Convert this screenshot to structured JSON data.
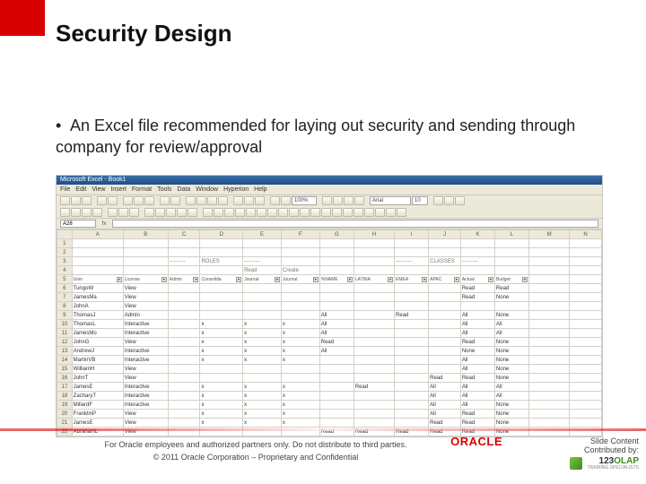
{
  "title": "Security Design",
  "bullet": "An Excel file recommended for laying out security and sending through company for review/approval",
  "excel": {
    "titlebar": "Microsoft Excel - Book1",
    "menus": [
      "File",
      "Edit",
      "View",
      "Insert",
      "Format",
      "Tools",
      "Data",
      "Window",
      "Hyperion",
      "Help"
    ],
    "zoom": "100%",
    "fontName": "Arial",
    "fontSize": "10",
    "nameBox": "A28",
    "colHeaders": [
      "A",
      "B",
      "C",
      "D",
      "E",
      "F",
      "G",
      "H",
      "I",
      "J",
      "K",
      "L",
      "M",
      "N"
    ],
    "dashes": "---------",
    "section1": "ROLES",
    "section2": "CLASSES",
    "subRead": "Read",
    "subCreate": "Create",
    "filterLabels": [
      "User",
      "License",
      "Admin",
      "Consolida",
      "Journal",
      "Journal",
      "%NAME",
      "LATINA",
      "EMEA",
      "APAC",
      "Actual",
      "Budget"
    ],
    "rows": [
      {
        "n": "6",
        "A": "TungoW",
        "B": "View",
        "C": "",
        "D": "",
        "E": "",
        "F": "",
        "G": "",
        "H": "",
        "I": "",
        "J": "",
        "K": "Read",
        "L": "Read",
        "M": "",
        "N": ""
      },
      {
        "n": "7",
        "A": "JamesMa",
        "B": "View",
        "C": "",
        "D": "",
        "E": "",
        "F": "",
        "G": "",
        "H": "",
        "I": "",
        "J": "",
        "K": "Read",
        "L": "None",
        "M": "",
        "N": ""
      },
      {
        "n": "8",
        "A": "JohnA",
        "B": "View",
        "C": "",
        "D": "",
        "E": "",
        "F": "",
        "G": "",
        "H": "",
        "I": "",
        "J": "",
        "K": "",
        "L": "",
        "M": "",
        "N": ""
      },
      {
        "n": "9",
        "A": "ThomasJ",
        "B": "Admin",
        "C": "",
        "D": "",
        "E": "",
        "F": "",
        "G": "All",
        "H": "",
        "I": "Read",
        "J": "",
        "K": "All",
        "L": "None",
        "M": "",
        "N": ""
      },
      {
        "n": "10",
        "A": "ThomasL",
        "B": "Interactive",
        "C": "",
        "D": "x",
        "E": "x",
        "F": "x",
        "G": "All",
        "H": "",
        "I": "",
        "J": "",
        "K": "All",
        "L": "All",
        "M": "",
        "N": ""
      },
      {
        "n": "11",
        "A": "JamesMo",
        "B": "Interactive",
        "C": "",
        "D": "x",
        "E": "x",
        "F": "x",
        "G": "All",
        "H": "",
        "I": "",
        "J": "",
        "K": "All",
        "L": "All",
        "M": "",
        "N": ""
      },
      {
        "n": "12",
        "A": "JohnG",
        "B": "View",
        "C": "",
        "D": "x",
        "E": "x",
        "F": "x",
        "G": "Read",
        "H": "",
        "I": "",
        "J": "",
        "K": "Read",
        "L": "None",
        "M": "",
        "N": ""
      },
      {
        "n": "13",
        "A": "AndrewJ",
        "B": "Interactive",
        "C": "",
        "D": "x",
        "E": "x",
        "F": "x",
        "G": "All",
        "H": "",
        "I": "",
        "J": "",
        "K": "None",
        "L": "None",
        "M": "",
        "N": ""
      },
      {
        "n": "14",
        "A": "MartinVB",
        "B": "Interactive",
        "C": "",
        "D": "x",
        "E": "x",
        "F": "x",
        "G": "",
        "H": "",
        "I": "",
        "J": "",
        "K": "All",
        "L": "None",
        "M": "",
        "N": ""
      },
      {
        "n": "15",
        "A": "WilliamH",
        "B": "View",
        "C": "",
        "D": "",
        "E": "",
        "F": "",
        "G": "",
        "H": "",
        "I": "",
        "J": "",
        "K": "All",
        "L": "None",
        "M": "",
        "N": ""
      },
      {
        "n": "16",
        "A": "JohnT",
        "B": "View",
        "C": "",
        "D": "",
        "E": "",
        "F": "",
        "G": "",
        "H": "",
        "I": "",
        "J": "Read",
        "K": "Read",
        "L": "None",
        "M": "",
        "N": ""
      },
      {
        "n": "17",
        "A": "JamesE",
        "B": "Interactive",
        "C": "",
        "D": "x",
        "E": "x",
        "F": "x",
        "G": "",
        "H": "Read",
        "I": "",
        "J": "All",
        "K": "All",
        "L": "All",
        "M": "",
        "N": ""
      },
      {
        "n": "18",
        "A": "ZacharyT",
        "B": "Interactive",
        "C": "",
        "D": "x",
        "E": "x",
        "F": "x",
        "G": "",
        "H": "",
        "I": "",
        "J": "All",
        "K": "All",
        "L": "All",
        "M": "",
        "N": ""
      },
      {
        "n": "19",
        "A": "MillardF",
        "B": "Interactive",
        "C": "",
        "D": "x",
        "E": "x",
        "F": "x",
        "G": "",
        "H": "",
        "I": "",
        "J": "All",
        "K": "All",
        "L": "None",
        "M": "",
        "N": ""
      },
      {
        "n": "20",
        "A": "FranklinP",
        "B": "View",
        "C": "",
        "D": "x",
        "E": "x",
        "F": "x",
        "G": "",
        "H": "",
        "I": "",
        "J": "All",
        "K": "Read",
        "L": "None",
        "M": "",
        "N": ""
      },
      {
        "n": "21",
        "A": "JamesE",
        "B": "View",
        "C": "",
        "D": "x",
        "E": "x",
        "F": "x",
        "G": "",
        "H": "",
        "I": "",
        "J": "Read",
        "K": "Read",
        "L": "None",
        "M": "",
        "N": ""
      },
      {
        "n": "22",
        "A": "AbrahamL",
        "B": "View",
        "C": "",
        "D": "",
        "E": "",
        "F": "",
        "G": "Read",
        "H": "Read",
        "I": "Read",
        "J": "Read",
        "K": "Read",
        "L": "None",
        "M": "",
        "N": ""
      }
    ]
  },
  "oracleBrand": "ORACLE",
  "footer": {
    "line1": "For Oracle employees and authorized partners only. Do not distribute to third parties.",
    "line2": "© 2011 Oracle Corporation – Proprietary and Confidential",
    "right1": "Slide Content",
    "right2": "Contributed by:",
    "olap123": "123",
    "olapWord": "OLAP",
    "olapSub": "TRAINING SPECIALISTS"
  }
}
